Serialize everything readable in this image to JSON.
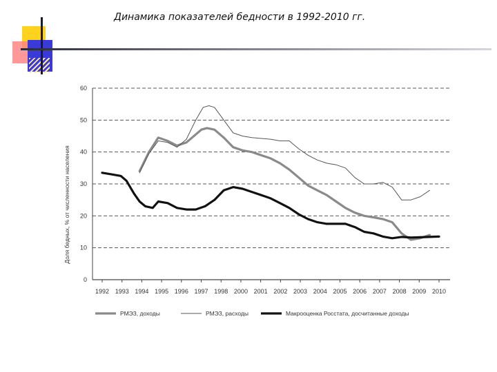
{
  "slide": {
    "title": "Динамика показателей бедности в 1992-2010 гг."
  },
  "chart_data": {
    "type": "line",
    "title": "",
    "ylabel": "Доля бедных, % от численности населения",
    "xlabel": "",
    "ylim": [
      0,
      60
    ],
    "yticks": [
      0,
      10,
      20,
      30,
      40,
      50,
      60
    ],
    "xlim": [
      1992,
      2010
    ],
    "xticks": [
      1992,
      1993,
      1994,
      1995,
      1996,
      1997,
      1998,
      2000,
      2001,
      2002,
      2003,
      2004,
      2005,
      2006,
      2007,
      2008,
      2009,
      2010
    ],
    "grid": "horizontal dashed",
    "legend_position": "bottom",
    "series": [
      {
        "name": "РМЭЗ, доходы",
        "color": "#8a8a8a",
        "style": "thick-gray",
        "x": [
          1994,
          1994.5,
          1995,
          1995.5,
          1996,
          1996.5,
          1997,
          1997.3,
          1997.6,
          1998,
          1998.5,
          1999,
          1999.5,
          2000,
          2000.5,
          2001,
          2001.5,
          2002,
          2002.5,
          2003,
          2003.5,
          2004,
          2004.5,
          2005,
          2005.5,
          2006,
          2006.5,
          2007,
          2007.5,
          2008,
          2008.5,
          2009,
          2009.5
        ],
        "y": [
          34,
          40,
          44.5,
          43.5,
          42,
          43,
          45.5,
          47,
          47.5,
          47,
          44.5,
          41.5,
          40.5,
          40,
          39,
          38,
          36.5,
          34.5,
          32,
          29.5,
          28,
          26.5,
          24.5,
          22.5,
          21,
          20,
          19.5,
          19,
          18,
          14.5,
          12.5,
          13,
          14
        ]
      },
      {
        "name": "РМЭЗ, расходы",
        "color": "#555555",
        "style": "thin",
        "x": [
          1994,
          1994.5,
          1995,
          1995.5,
          1996,
          1996.5,
          1997,
          1997.4,
          1997.7,
          1998,
          1998.5,
          1999,
          1999.5,
          2000,
          2001,
          2001.5,
          2002,
          2002.5,
          2003,
          2003.5,
          2004,
          2004.5,
          2005,
          2005.5,
          2006,
          2006.5,
          2007,
          2007.5,
          2008,
          2008.5,
          2009,
          2009.5
        ],
        "y": [
          33.5,
          39.5,
          43.5,
          43,
          41.5,
          44,
          50,
          54,
          54.5,
          54,
          50,
          46,
          45,
          44.5,
          44,
          43.5,
          43.5,
          41,
          39,
          37.5,
          36.5,
          36,
          35,
          32,
          30,
          30,
          30.5,
          29,
          25,
          25,
          26,
          28
        ]
      },
      {
        "name": "Макрооценка Росстата, досчитанные доходы",
        "color": "#111111",
        "style": "thick-black",
        "x": [
          1992,
          1992.5,
          1993,
          1993.3,
          1993.7,
          1994,
          1994.3,
          1994.7,
          1995,
          1995.5,
          1996,
          1996.5,
          1997,
          1997.5,
          1998,
          1998.5,
          1999,
          1999.5,
          2000,
          2000.5,
          2001,
          2001.5,
          2002,
          2002.5,
          2003,
          2003.5,
          2004,
          2004.5,
          2005,
          2005.5,
          2006,
          2006.5,
          2007,
          2007.5,
          2008,
          2008.5,
          2009,
          2009.5,
          2010
        ],
        "y": [
          33.5,
          33,
          32.5,
          31,
          27,
          24.5,
          23,
          22.5,
          24.5,
          24,
          22.5,
          22,
          22,
          23,
          25,
          28,
          29,
          28.5,
          27.5,
          26.5,
          25.5,
          24,
          22.5,
          20.5,
          19,
          18,
          17.5,
          17.5,
          17.5,
          16.5,
          15,
          14.5,
          13.5,
          13,
          13.4,
          13.2,
          13.3,
          13.4,
          13.5
        ]
      }
    ]
  }
}
